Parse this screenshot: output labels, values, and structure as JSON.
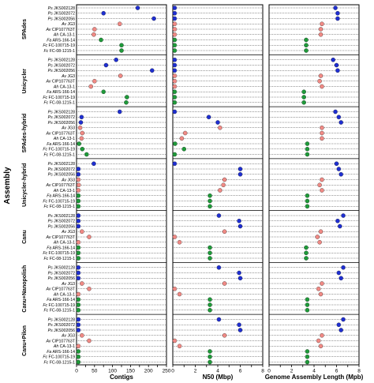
{
  "chart_data": {
    "type": "scatter",
    "ylabel": "Assembly",
    "colors": {
      "Ps": "#1f2fd1",
      "Av": "#f08a85",
      "Ah": "#f08a85",
      "Fa": "#1f9a3a",
      "Fc": "#1f9a3a"
    },
    "strains": [
      {
        "sp": "Ps",
        "id": "JKS002128"
      },
      {
        "sp": "Ps",
        "id": "JKS002072"
      },
      {
        "sp": "Ps",
        "id": "JKS002056"
      },
      {
        "sp": "Av",
        "id": "JG3"
      },
      {
        "sp": "Av",
        "id": "CIP107763T"
      },
      {
        "sp": "Ah",
        "id": "CA-13-1"
      },
      {
        "sp": "Fa",
        "id": "ARS-166-14"
      },
      {
        "sp": "Fc",
        "id": "FC-100715-19"
      },
      {
        "sp": "Fc",
        "id": "FC-08-1215-1"
      }
    ],
    "groups": [
      "SPAdes",
      "Unicycler",
      "SPAdes-hybrid",
      "Unicycler-hybrid",
      "Canu",
      "Canu+Nanopolish",
      "Canu+Pilon"
    ],
    "panels": [
      {
        "xlabel": "Contigs",
        "xlim": [
          0,
          250
        ],
        "ticks": [
          0,
          25,
          50,
          75,
          100,
          125,
          150,
          175,
          200,
          225,
          250
        ],
        "values": [
          [
            170,
            75,
            215,
            120,
            50,
            48,
            68,
            125,
            125
          ],
          [
            110,
            82,
            210,
            122,
            50,
            40,
            75,
            140,
            138
          ],
          [
            120,
            14,
            12,
            10,
            16,
            14,
            7,
            16,
            28
          ],
          [
            48,
            4,
            3,
            3,
            6,
            5,
            3,
            3,
            3
          ],
          [
            4,
            3,
            2,
            15,
            35,
            3,
            1,
            1,
            1
          ],
          [
            4,
            3,
            2,
            15,
            35,
            3,
            1,
            1,
            1
          ],
          [
            4,
            3,
            2,
            15,
            35,
            3,
            1,
            1,
            1
          ]
        ]
      },
      {
        "xlabel": "N50 (Mbp)",
        "xlim": [
          0,
          8
        ],
        "ticks": [
          0,
          1,
          2,
          3,
          4,
          5,
          6,
          7,
          8
        ],
        "values": [
          [
            0.08,
            0.15,
            0.08,
            0.06,
            0.15,
            0.06,
            0.05,
            0.05,
            0.05
          ],
          [
            0.08,
            0.12,
            0.06,
            0.06,
            0.15,
            0.06,
            0.05,
            0.05,
            0.05
          ],
          [
            0.1,
            3.2,
            4.0,
            4.2,
            1.1,
            0.8,
            0.2,
            1.0,
            0.1
          ],
          [
            0.1,
            6.0,
            6.0,
            4.6,
            4.5,
            4.2,
            3.3,
            3.3,
            3.3
          ],
          [
            4.1,
            5.9,
            6.0,
            4.6,
            0.1,
            0.6,
            3.3,
            3.3,
            3.3
          ],
          [
            4.1,
            5.9,
            6.0,
            4.6,
            0.1,
            0.6,
            3.3,
            3.3,
            3.3
          ],
          [
            4.1,
            5.9,
            6.0,
            4.6,
            0.1,
            0.6,
            3.3,
            3.3,
            3.3
          ]
        ]
      },
      {
        "xlabel": "Genome Assembly Length (Mpb)",
        "xlim": [
          0,
          8
        ],
        "ticks": [
          0,
          1,
          2,
          3,
          4,
          5,
          6,
          7,
          8
        ],
        "values": [
          [
            5.9,
            6.1,
            6.1,
            4.7,
            4.6,
            4.6,
            3.3,
            3.3,
            3.3
          ],
          [
            5.7,
            6.0,
            6.1,
            4.6,
            4.5,
            4.7,
            3.1,
            3.1,
            3.1
          ],
          [
            5.9,
            6.2,
            6.4,
            4.7,
            4.7,
            4.7,
            3.4,
            3.4,
            3.4
          ],
          [
            6.0,
            6.2,
            6.4,
            4.7,
            4.5,
            4.7,
            3.4,
            3.4,
            3.4
          ],
          [
            6.6,
            6.1,
            6.3,
            4.6,
            4.3,
            4.5,
            3.3,
            3.3,
            3.3
          ],
          [
            6.6,
            6.2,
            6.4,
            4.7,
            4.4,
            4.6,
            3.4,
            3.4,
            3.4
          ],
          [
            6.6,
            6.2,
            6.4,
            4.7,
            4.4,
            4.6,
            3.4,
            3.4,
            3.4
          ]
        ]
      }
    ]
  }
}
